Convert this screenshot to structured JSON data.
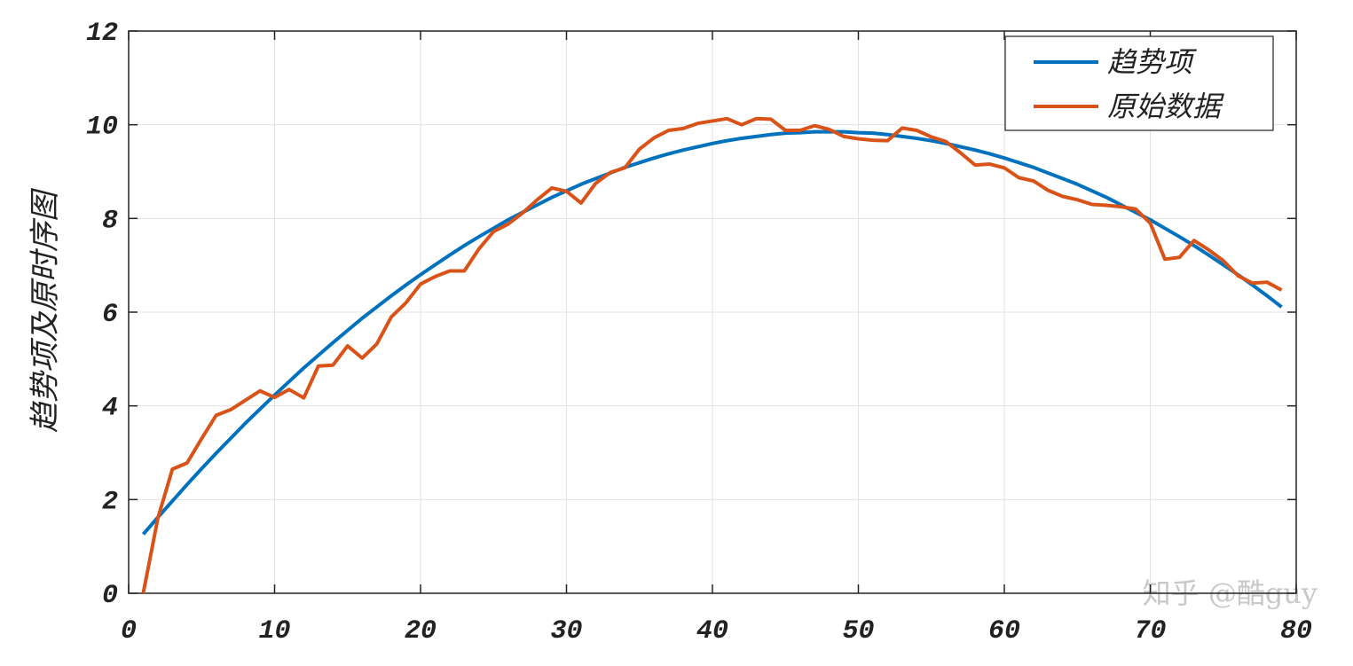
{
  "chart_data": {
    "type": "line",
    "ylabel": "趋势项及原时序图",
    "watermark": "知乎 @酷guy",
    "x": [
      1,
      2,
      3,
      4,
      5,
      6,
      7,
      8,
      9,
      10,
      11,
      12,
      13,
      14,
      15,
      16,
      17,
      18,
      19,
      20,
      21,
      22,
      23,
      24,
      25,
      26,
      27,
      28,
      29,
      30,
      31,
      32,
      33,
      34,
      35,
      36,
      37,
      38,
      39,
      40,
      41,
      42,
      43,
      44,
      45,
      46,
      47,
      48,
      49,
      50,
      51,
      52,
      53,
      54,
      55,
      56,
      57,
      58,
      59,
      60,
      61,
      62,
      63,
      64,
      65,
      66,
      67,
      68,
      69,
      70,
      71,
      72,
      73,
      74,
      75,
      76,
      77,
      78,
      79
    ],
    "series": [
      {
        "name": "趋势项",
        "color": "#0072bd",
        "values": [
          1.26,
          1.62,
          1.97,
          2.32,
          2.66,
          2.99,
          3.31,
          3.63,
          3.93,
          4.23,
          4.52,
          4.81,
          5.08,
          5.35,
          5.61,
          5.87,
          6.11,
          6.35,
          6.58,
          6.8,
          7.01,
          7.22,
          7.42,
          7.61,
          7.79,
          7.97,
          8.13,
          8.29,
          8.45,
          8.59,
          8.73,
          8.85,
          8.97,
          9.09,
          9.19,
          9.29,
          9.38,
          9.46,
          9.53,
          9.6,
          9.66,
          9.71,
          9.75,
          9.79,
          9.82,
          9.83,
          9.85,
          9.85,
          9.85,
          9.83,
          9.82,
          9.79,
          9.75,
          9.71,
          9.66,
          9.6,
          9.53,
          9.46,
          9.38,
          9.29,
          9.19,
          9.09,
          8.97,
          8.85,
          8.73,
          8.59,
          8.45,
          8.29,
          8.13,
          7.97,
          7.79,
          7.61,
          7.42,
          7.22,
          7.01,
          6.8,
          6.58,
          6.35,
          6.11
        ]
      },
      {
        "name": "原始数据",
        "color": "#d95319",
        "values": [
          0,
          1.6,
          2.65,
          2.78,
          3.3,
          3.8,
          3.92,
          4.12,
          4.32,
          4.18,
          4.35,
          4.17,
          4.85,
          4.87,
          5.28,
          5.02,
          5.32,
          5.9,
          6.2,
          6.6,
          6.76,
          6.88,
          6.88,
          7.35,
          7.72,
          7.88,
          8.12,
          8.4,
          8.65,
          8.58,
          8.33,
          8.75,
          8.98,
          9.08,
          9.48,
          9.72,
          9.88,
          9.92,
          10.03,
          10.08,
          10.13,
          10.0,
          10.13,
          10.12,
          9.88,
          9.88,
          9.98,
          9.9,
          9.75,
          9.7,
          9.67,
          9.66,
          9.93,
          9.88,
          9.74,
          9.64,
          9.4,
          9.14,
          9.16,
          9.08,
          8.87,
          8.8,
          8.6,
          8.47,
          8.4,
          8.3,
          8.28,
          8.25,
          8.2,
          7.9,
          7.13,
          7.17,
          7.53,
          7.33,
          7.1,
          6.78,
          6.62,
          6.64,
          6.47
        ]
      }
    ],
    "xlim": [
      0,
      80
    ],
    "xticks": [
      0,
      10,
      20,
      30,
      40,
      50,
      60,
      70,
      80
    ],
    "ylim": [
      0,
      12
    ],
    "yticks": [
      0,
      2,
      4,
      6,
      8,
      10,
      12
    ],
    "grid": true,
    "legend": "upper right"
  }
}
